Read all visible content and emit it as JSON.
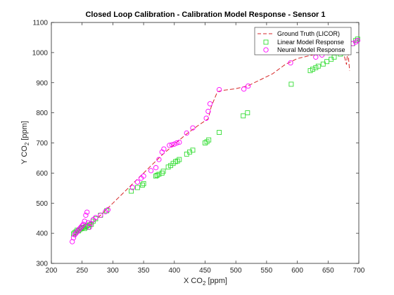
{
  "chart_data": {
    "type": "scatter",
    "title": "Closed Loop Calibration - Calibration Model Response - Sensor 1",
    "xlabel": "X CO",
    "xlabel_sub": "2",
    "xlabel_unit": " [ppm]",
    "ylabel": "Y CO",
    "ylabel_sub": "2",
    "ylabel_unit": " [ppm]",
    "xlim": [
      200,
      700
    ],
    "ylim": [
      300,
      1100
    ],
    "xticks": [
      200,
      250,
      300,
      350,
      400,
      450,
      500,
      550,
      600,
      650,
      700
    ],
    "yticks": [
      300,
      400,
      500,
      600,
      700,
      800,
      900,
      1000,
      1100
    ],
    "grid": false,
    "legend_position": "top-right",
    "series": [
      {
        "name": "Ground Truth (LICOR)",
        "style": "dashed-line",
        "color": "#d62728",
        "x": [
          235,
          240,
          245,
          250,
          255,
          260,
          265,
          270,
          280,
          290,
          300,
          320,
          340,
          360,
          380,
          400,
          420,
          440,
          455,
          460,
          470,
          480,
          500,
          520,
          540,
          560,
          580,
          600,
          620,
          640,
          660,
          675,
          680,
          682,
          685
        ],
        "y": [
          390,
          400,
          410,
          415,
          420,
          425,
          430,
          440,
          460,
          480,
          500,
          540,
          580,
          620,
          660,
          695,
          730,
          760,
          780,
          820,
          870,
          875,
          880,
          890,
          910,
          930,
          960,
          980,
          990,
          1000,
          1010,
          1000,
          960,
          1010,
          940
        ]
      },
      {
        "name": "Linear Model Response",
        "style": "square-marker",
        "color": "#33dd33",
        "x": [
          236,
          238,
          240,
          242,
          244,
          246,
          248,
          250,
          252,
          254,
          256,
          258,
          260,
          262,
          265,
          268,
          272,
          280,
          290,
          330,
          340,
          348,
          350,
          370,
          372,
          375,
          380,
          382,
          390,
          394,
          398,
          402,
          405,
          408,
          420,
          425,
          430,
          450,
          453,
          456,
          473,
          512,
          519,
          590,
          621,
          625,
          630,
          634,
          642,
          648,
          655,
          660,
          670,
          675,
          680,
          690,
          695,
          698
        ],
        "y": [
          398,
          402,
          405,
          410,
          408,
          412,
          415,
          418,
          420,
          416,
          422,
          425,
          420,
          428,
          430,
          440,
          448,
          460,
          475,
          540,
          552,
          560,
          565,
          590,
          593,
          596,
          600,
          606,
          620,
          625,
          632,
          638,
          640,
          645,
          663,
          670,
          676,
          700,
          704,
          710,
          735,
          790,
          800,
          895,
          940,
          945,
          950,
          955,
          962,
          970,
          978,
          985,
          995,
          1000,
          1005,
          1030,
          1040,
          1045
        ]
      },
      {
        "name": "Neural Model Response",
        "style": "circle-marker",
        "color": "#ff00ff",
        "x": [
          234,
          236,
          238,
          240,
          242,
          244,
          246,
          248,
          250,
          252,
          254,
          256,
          258,
          260,
          262,
          264,
          268,
          272,
          280,
          288,
          292,
          332,
          340,
          346,
          350,
          362,
          370,
          375,
          380,
          383,
          392,
          396,
          400,
          404,
          408,
          420,
          430,
          452,
          455,
          458,
          473,
          513,
          520,
          589,
          630,
          640,
          650,
          660,
          670,
          680,
          690,
          695,
          698
        ],
        "y": [
          372,
          385,
          395,
          400,
          405,
          410,
          415,
          420,
          425,
          430,
          440,
          460,
          470,
          435,
          420,
          432,
          445,
          452,
          460,
          472,
          478,
          552,
          570,
          583,
          590,
          608,
          618,
          645,
          670,
          680,
          692,
          694,
          696,
          700,
          702,
          733,
          750,
          782,
          805,
          830,
          877,
          879,
          889,
          966,
          985,
          992,
          1000,
          1010,
          1018,
          1025,
          1030,
          1035,
          1040
        ]
      }
    ]
  }
}
